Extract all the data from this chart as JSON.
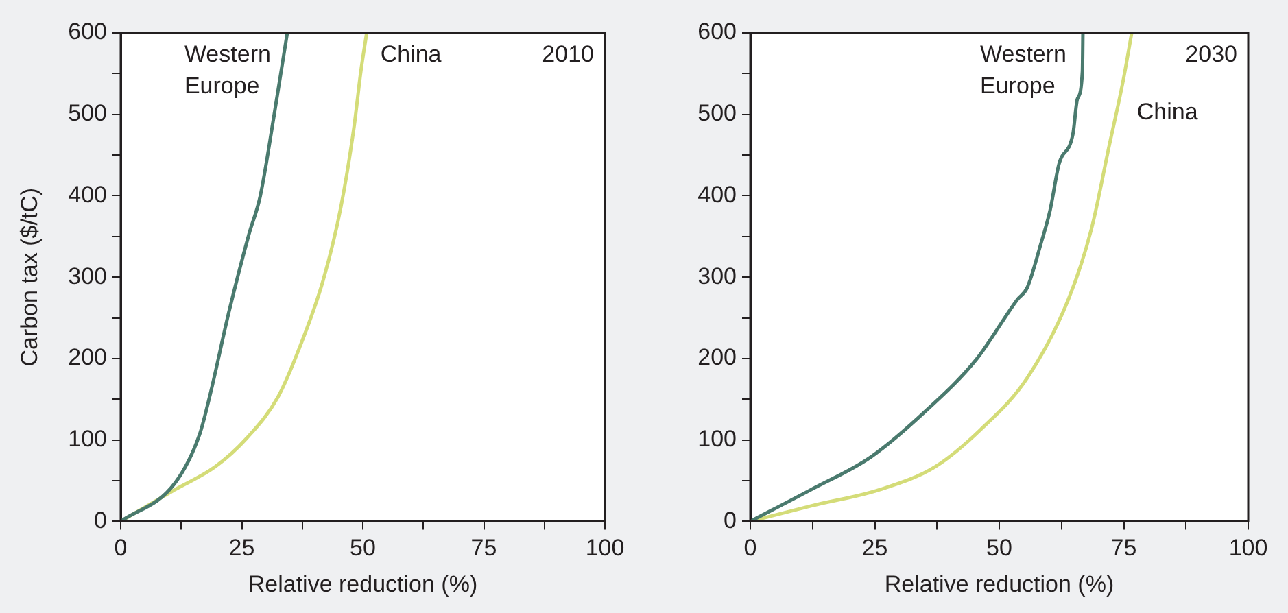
{
  "chart_data": [
    {
      "type": "line",
      "xlabel": "Relative reduction (%)",
      "ylabel": "Carbon tax ($/tC)",
      "annotations": [
        "2010"
      ],
      "xlim": [
        0,
        100
      ],
      "ylim": [
        0,
        600
      ],
      "xticks": [
        0,
        {
          "value": 12.5,
          "label": null
        },
        25,
        {
          "value": 37.5,
          "label": null
        },
        50,
        {
          "value": 62.5,
          "label": null
        },
        75,
        {
          "value": 87.5,
          "label": null
        },
        100
      ],
      "yticks": [
        0,
        {
          "value": 50,
          "label": null
        },
        100,
        {
          "value": 150,
          "label": null
        },
        200,
        {
          "value": 250,
          "label": null
        },
        300,
        {
          "value": 350,
          "label": null
        },
        400,
        {
          "value": 450,
          "label": null
        },
        500,
        {
          "value": 550,
          "label": null
        },
        600
      ],
      "grid": false,
      "legend": false,
      "marker": "none",
      "line_style": "solid",
      "series": [
        {
          "name": "Western Europe",
          "color": "#4a7a6e",
          "x": [
            0,
            11.2,
            16.3,
            18.6,
            22.3,
            26.5,
            28.8,
            31.6,
            34.4
          ],
          "values": [
            0,
            47,
            107,
            159,
            256,
            353,
            399,
            496,
            600
          ]
        },
        {
          "name": "China",
          "color": "#d4dc78",
          "x": [
            0,
            11.2,
            19.5,
            26,
            32.5,
            37.1,
            41.8,
            45.5,
            48.2,
            49.6,
            50.8
          ],
          "values": [
            0,
            39,
            67,
            102,
            153,
            216,
            296,
            387,
            485,
            553,
            600
          ]
        }
      ]
    },
    {
      "type": "line",
      "xlabel": "Relative reduction (%)",
      "annotations": [
        "2030"
      ],
      "xlim": [
        0,
        100
      ],
      "ylim": [
        0,
        600
      ],
      "xticks": [
        0,
        {
          "value": 12.5,
          "label": null
        },
        25,
        {
          "value": 37.5,
          "label": null
        },
        50,
        {
          "value": 62.5,
          "label": null
        },
        75,
        {
          "value": 87.5,
          "label": null
        },
        100
      ],
      "yticks": [
        0,
        {
          "value": 50,
          "label": null
        },
        100,
        {
          "value": 150,
          "label": null
        },
        200,
        {
          "value": 250,
          "label": null
        },
        300,
        {
          "value": 350,
          "label": null
        },
        400,
        {
          "value": 450,
          "label": null
        },
        500,
        {
          "value": 550,
          "label": null
        },
        600
      ],
      "grid": false,
      "legend": false,
      "marker": "none",
      "line_style": "solid",
      "series": [
        {
          "name": "Western Europe",
          "color": "#4a7a6e",
          "x": [
            0,
            12.2,
            24.2,
            35.3,
            45.4,
            53.7,
            55.6,
            58.4,
            60.2,
            62,
            64.8,
            65.7,
            66.7,
            66.8
          ],
          "values": [
            0,
            39,
            79,
            136,
            199,
            273,
            287,
            342,
            382,
            439,
            476,
            519,
            553,
            600
          ]
        },
        {
          "name": "China",
          "color": "#d4dc78",
          "x": [
            0,
            12.2,
            26,
            37.1,
            46.3,
            55.6,
            63.9,
            68.5,
            72.1,
            74.9,
            76.6
          ],
          "values": [
            0,
            19,
            39,
            67,
            113,
            176,
            273,
            359,
            462,
            542,
            600
          ]
        }
      ]
    }
  ]
}
